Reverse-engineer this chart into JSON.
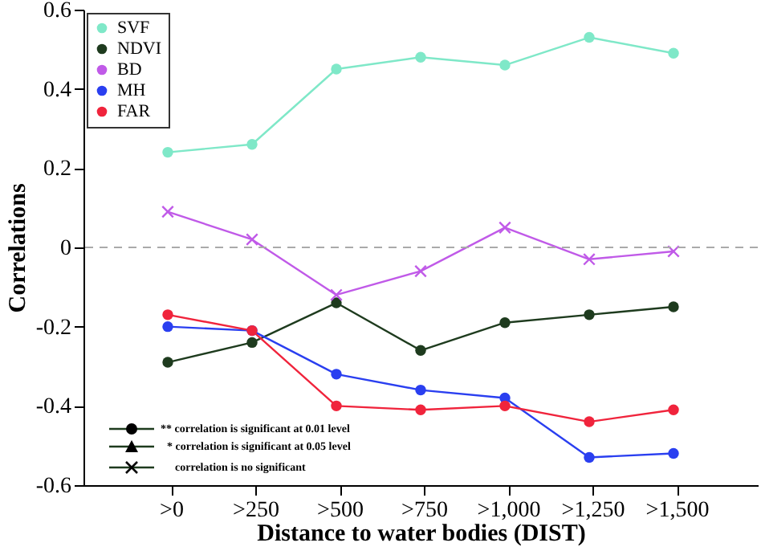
{
  "chart_data": {
    "type": "line",
    "xlabel": "Distance to water bodies (DIST)",
    "ylabel": "Correlations",
    "categories": [
      ">0",
      ">250",
      ">500",
      ">750",
      ">1,000",
      ">1,250",
      ">1,500"
    ],
    "series": [
      {
        "name": "SVF",
        "color": "#7fe8c8",
        "marker": "circle",
        "values": [
          0.24,
          0.26,
          0.45,
          0.48,
          0.46,
          0.53,
          0.49
        ]
      },
      {
        "name": "NDVI",
        "color": "#1e3b1e",
        "marker": "circle",
        "values": [
          -0.29,
          -0.24,
          -0.14,
          -0.26,
          -0.19,
          -0.17,
          -0.15
        ]
      },
      {
        "name": "BD",
        "color": "#c05ae8",
        "marker": "cross",
        "values": [
          0.09,
          0.02,
          -0.12,
          -0.06,
          0.05,
          -0.03,
          -0.01
        ]
      },
      {
        "name": "MH",
        "color": "#2a3ff0",
        "marker": "circle",
        "values": [
          -0.2,
          -0.21,
          -0.32,
          -0.36,
          -0.38,
          -0.53,
          -0.52
        ]
      },
      {
        "name": "FAR",
        "color": "#f0243c",
        "marker": "circle",
        "values": [
          -0.17,
          -0.21,
          -0.4,
          -0.41,
          -0.4,
          -0.44,
          -0.41
        ]
      }
    ],
    "ylim": [
      -0.6,
      0.6
    ],
    "yticks": [
      -0.6,
      -0.4,
      -0.2,
      0,
      0.2,
      0.4,
      0.6
    ],
    "ref_lines": [
      {
        "axis": "y",
        "value": 0,
        "color": "#aaaaaa",
        "line_style": "dashed"
      }
    ],
    "legend": "top left",
    "annotations": [
      "** correlation is significant at 0.01 level",
      "* correlation is significant at 0.05 level",
      "correlation is no significant"
    ]
  }
}
